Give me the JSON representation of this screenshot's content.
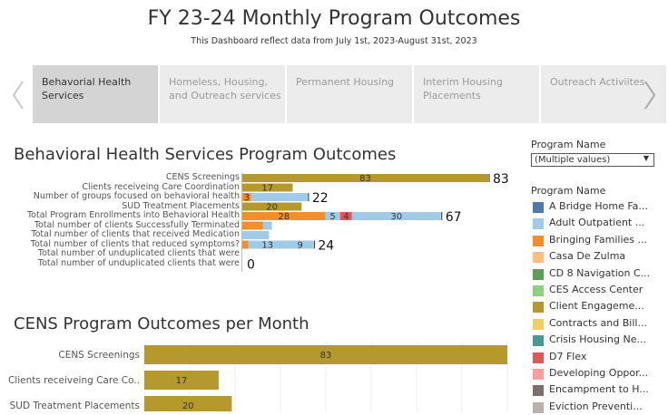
{
  "header": {
    "title": "FY 23-24 Monthly Program Outcomes",
    "subtitle": "This Dashboard reflect data from July 1st, 2023-August 31st, 2023"
  },
  "tabs": [
    {
      "label": "Behavorial Health\nServices",
      "active": true
    },
    {
      "label": "Homeless, Housing,\nand Outreach services",
      "active": false
    },
    {
      "label": "Permanent Housing",
      "active": false
    },
    {
      "label": "Interim Housing\nPlacements",
      "active": false
    },
    {
      "label": "Outreach Activiites",
      "active": false
    }
  ],
  "nav": {
    "prev_icon": "chevron-left-icon",
    "next_icon": "chevron-right-icon"
  },
  "section1": {
    "title": "Behavioral Health Services Program Outcomes"
  },
  "section2": {
    "title": "CENS Program Outcomes per Month"
  },
  "filter": {
    "label": "Program Name",
    "value": "(Multiple values)"
  },
  "legend": {
    "title": "Program Name",
    "items": [
      {
        "label": "A Bridge Home Fa...",
        "color": "#4e79a7"
      },
      {
        "label": "Adult Outpatient ...",
        "color": "#a0cbe8"
      },
      {
        "label": "Bringing Families ...",
        "color": "#f28e2b"
      },
      {
        "label": "Casa De Zulma",
        "color": "#ffbe7d"
      },
      {
        "label": "CD 8 Navigation C...",
        "color": "#59a14f"
      },
      {
        "label": "CES Access Center",
        "color": "#8cd17d"
      },
      {
        "label": "Client Engageme...",
        "color": "#b6992d"
      },
      {
        "label": "Contracts and Bill...",
        "color": "#f1ce63"
      },
      {
        "label": "Crisis Housing Ne...",
        "color": "#499894"
      },
      {
        "label": "D7 Flex",
        "color": "#e15759"
      },
      {
        "label": "Developing Oppor...",
        "color": "#ff9d9a"
      },
      {
        "label": "Encampment to H...",
        "color": "#79706e"
      },
      {
        "label": "Eviction Preventi...",
        "color": "#bab0ac"
      }
    ]
  },
  "chart_data": [
    {
      "type": "bar",
      "orientation": "horizontal",
      "stacked": true,
      "title": "Behavioral Health Services Program Outcomes",
      "rows": [
        {
          "label": "CENS Screenings",
          "total": "83",
          "segments": [
            {
              "value": 83,
              "color": "#b6992d",
              "label": "83"
            }
          ]
        },
        {
          "label": "Clients receiveing Care Coordination",
          "total": "",
          "segments": [
            {
              "value": 17,
              "color": "#b6992d",
              "label": "17"
            }
          ]
        },
        {
          "label": "Number of groups focused on behavioral health",
          "total": "22",
          "segments": [
            {
              "value": 3,
              "color": "#f28e2b",
              "label": "3"
            },
            {
              "value": 19,
              "color": "#a0cbe8",
              "label": ""
            }
          ]
        },
        {
          "label": "SUD Treatment Placements",
          "total": "",
          "segments": [
            {
              "value": 20,
              "color": "#b6992d",
              "label": "20"
            }
          ]
        },
        {
          "label": "Total Program Enrollments into Behavioral Health",
          "total": "67",
          "segments": [
            {
              "value": 28,
              "color": "#f28e2b",
              "label": "28"
            },
            {
              "value": 5,
              "color": "#a0cbe8",
              "label": "5"
            },
            {
              "value": 4,
              "color": "#e15759",
              "label": "4"
            },
            {
              "value": 30,
              "color": "#a0cbe8",
              "label": "30"
            }
          ]
        },
        {
          "label": "Total number of clients Successfully Terminated",
          "total": "",
          "segments": [
            {
              "value": 7,
              "color": "#f28e2b",
              "label": ""
            },
            {
              "value": 3,
              "color": "#a0cbe8",
              "label": ""
            }
          ]
        },
        {
          "label": "Total number of clients that received Medication",
          "total": "",
          "segments": [
            {
              "value": 9,
              "color": "#a0cbe8",
              "label": ""
            }
          ]
        },
        {
          "label": "Total number of clients that reduced symptoms?",
          "total": "24",
          "segments": [
            {
              "value": 2,
              "color": "#f28e2b",
              "label": ""
            },
            {
              "value": 13,
              "color": "#a0cbe8",
              "label": "13"
            },
            {
              "value": 9,
              "color": "#a0cbe8",
              "label": "9"
            }
          ]
        },
        {
          "label": "Total number of unduplicated clients that were",
          "total": "",
          "segments": []
        },
        {
          "label": "Total number of unduplicated clients that were",
          "total": "0",
          "segments": []
        }
      ],
      "xlim": [
        0,
        83
      ]
    },
    {
      "type": "bar",
      "orientation": "horizontal",
      "title": "CENS Program Outcomes per Month",
      "rows": [
        {
          "label": "CENS Screenings",
          "value": 83,
          "color": "#b6992d"
        },
        {
          "label": "Clients receiveing Care Co..",
          "value": 17,
          "color": "#b6992d"
        },
        {
          "label": "SUD Treatment Placements",
          "value": 20,
          "color": "#b6992d"
        }
      ],
      "xlim": [
        0,
        83
      ]
    }
  ]
}
